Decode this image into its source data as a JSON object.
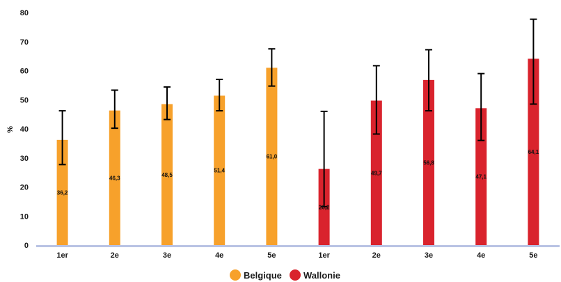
{
  "chart_data": {
    "type": "bar",
    "ylabel": "%",
    "ylim": [
      0,
      80
    ],
    "yticks": [
      0,
      10,
      20,
      30,
      40,
      50,
      60,
      70,
      80
    ],
    "grid": false,
    "legend_position": "bottom",
    "series": [
      {
        "name": "Belgique",
        "color": "#F7A12B",
        "categories": [
          "1er",
          "2e",
          "3e",
          "4e",
          "5e"
        ],
        "values": [
          36.2,
          46.3,
          48.5,
          51.4,
          61.0
        ],
        "labels": [
          "36,2",
          "46,3",
          "48,5",
          "51,4",
          "61,0"
        ],
        "error_low": [
          27.7,
          40.2,
          43.2,
          46.2,
          54.7
        ],
        "error_high": [
          46.2,
          53.3,
          54.4,
          57.0,
          67.5
        ]
      },
      {
        "name": "Wallonie",
        "color": "#D9232D",
        "categories": [
          "1er",
          "2e",
          "3e",
          "4e",
          "5e"
        ],
        "values": [
          26.2,
          49.7,
          56.8,
          47.1,
          64.1
        ],
        "labels": [
          "26,2",
          "49,7",
          "56,8",
          "47,1",
          "64,1"
        ],
        "error_low": [
          13.2,
          38.2,
          46.2,
          36.0,
          48.5
        ],
        "error_high": [
          46.0,
          61.7,
          67.2,
          59.0,
          77.7
        ]
      }
    ]
  }
}
